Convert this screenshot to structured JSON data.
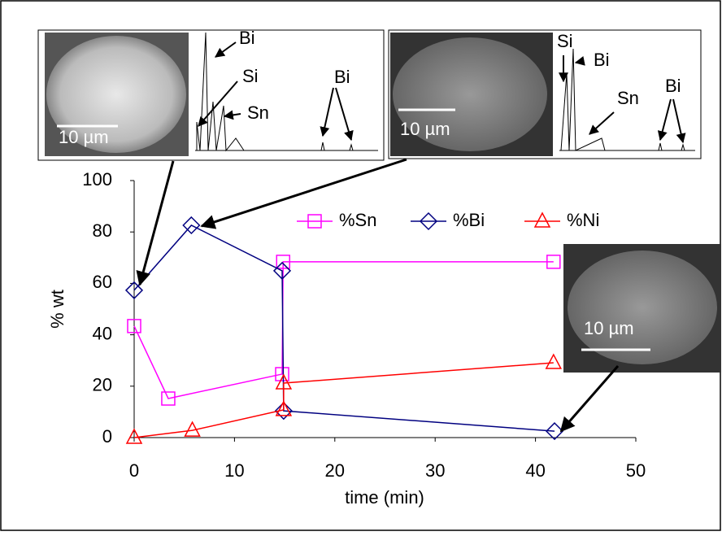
{
  "chart_data": {
    "type": "line",
    "x_label": "time (min)",
    "y_label": "% wt",
    "xlim": [
      0,
      50
    ],
    "xticks": [
      0,
      10,
      20,
      30,
      40,
      50
    ],
    "ylim": [
      0,
      100
    ],
    "yticks": [
      0,
      20,
      40,
      60,
      80,
      100
    ],
    "grid": false,
    "legend": "top-right",
    "series": [
      {
        "name": "%Sn",
        "color": "#ff00ff",
        "marker": "square",
        "x": [
          0,
          3.4,
          14.75,
          14.85,
          41.8
        ],
        "values": [
          43.4,
          15.2,
          24.7,
          68.4,
          68.4
        ]
      },
      {
        "name": "%Bi",
        "color": "#000080",
        "marker": "diamond",
        "x": [
          0,
          5.7,
          14.75,
          14.9,
          41.9
        ],
        "values": [
          57.3,
          82.6,
          64.9,
          10.4,
          2.5
        ]
      },
      {
        "name": "%Ni",
        "color": "#ff0000",
        "marker": "triangle",
        "x": [
          0,
          5.8,
          14.9,
          14.9,
          41.8
        ],
        "values": [
          0,
          2.8,
          10.8,
          21.2,
          29.1
        ]
      }
    ],
    "annotations": [
      "Bi",
      "Si",
      "Sn",
      "Bi",
      "10 µm",
      "Si",
      "Bi",
      "Sn",
      "Bi",
      "10 µm",
      "10 µm"
    ]
  }
}
